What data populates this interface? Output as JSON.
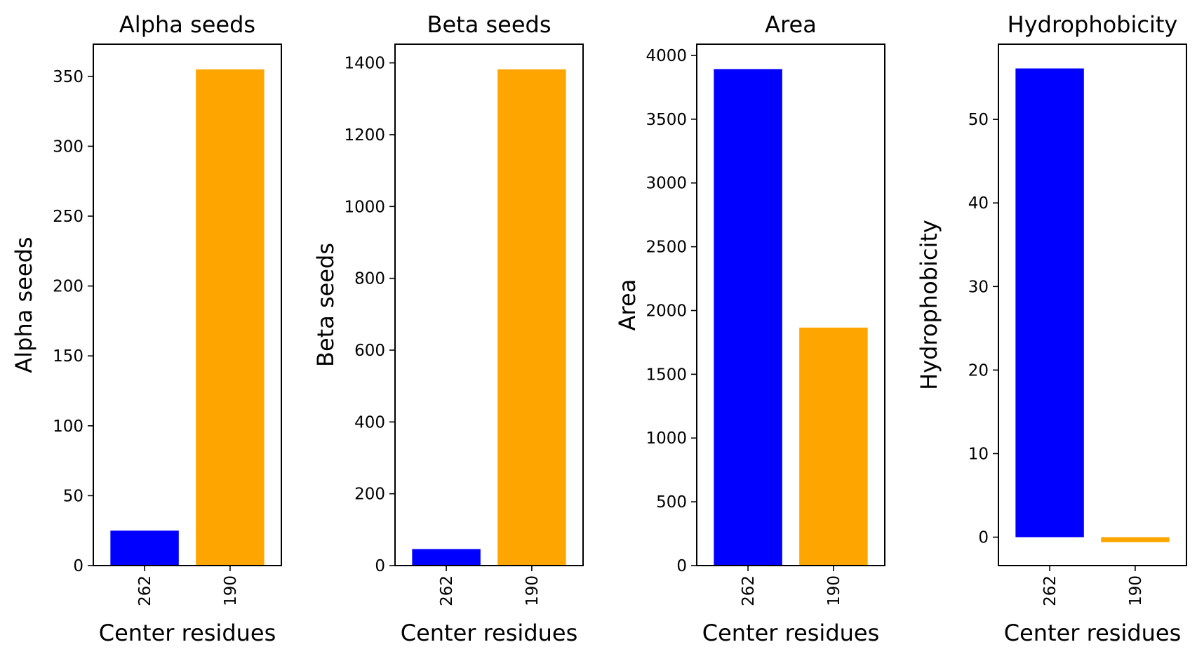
{
  "chart_data": [
    {
      "type": "bar",
      "title": "Alpha seeds",
      "xlabel": "Center residues",
      "ylabel": "Alpha seeds",
      "categories": [
        "262",
        "190"
      ],
      "values": [
        25,
        355
      ],
      "colors": [
        "#0000ff",
        "#ffa500"
      ],
      "ylim": [
        0,
        373
      ],
      "yticks": [
        0,
        50,
        100,
        150,
        200,
        250,
        300,
        350
      ],
      "grid": false
    },
    {
      "type": "bar",
      "title": "Beta seeds",
      "xlabel": "Center residues",
      "ylabel": "Beta seeds",
      "categories": [
        "262",
        "190"
      ],
      "values": [
        46,
        1382
      ],
      "colors": [
        "#0000ff",
        "#ffa500"
      ],
      "ylim": [
        0,
        1452
      ],
      "yticks": [
        0,
        200,
        400,
        600,
        800,
        1000,
        1200,
        1400
      ],
      "grid": false
    },
    {
      "type": "bar",
      "title": "Area",
      "xlabel": "Center residues",
      "ylabel": "Area",
      "categories": [
        "262",
        "190"
      ],
      "values": [
        3893,
        1866
      ],
      "colors": [
        "#0000ff",
        "#ffa500"
      ],
      "ylim": [
        0,
        4088
      ],
      "yticks": [
        0,
        500,
        1000,
        1500,
        2000,
        2500,
        3000,
        3500,
        4000
      ],
      "grid": false
    },
    {
      "type": "bar",
      "title": "Hydrophobicity",
      "xlabel": "Center residues",
      "ylabel": "Hydrophobicity",
      "categories": [
        "262",
        "190"
      ],
      "values": [
        56.1,
        -0.6
      ],
      "colors": [
        "#0000ff",
        "#ffa500"
      ],
      "ylim": [
        -3.4,
        59
      ],
      "yticks": [
        0,
        10,
        20,
        30,
        40,
        50
      ],
      "grid": false
    }
  ]
}
